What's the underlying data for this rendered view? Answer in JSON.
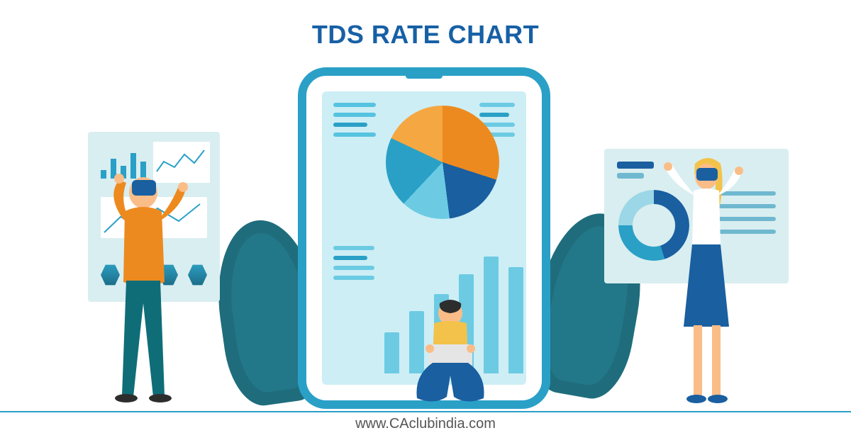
{
  "title": {
    "text": "TDS RATE CHART",
    "color": "#1760a5",
    "fontsize": 36
  },
  "footer": {
    "text": "www.CAclubindia.com",
    "color": "#555555",
    "fontsize": 20
  },
  "colors": {
    "background": "#ffffff",
    "tablet_border": "#2aa0c7",
    "screen_bg": "#cdeef5",
    "panel_bg": "#d9eef0",
    "leaf": "#1f6d7c",
    "dash": "#9fd2dc",
    "orange": "#ed8a1f",
    "blue_dark": "#1a5fa0",
    "teal": "#2aa0c7",
    "teal_light": "#6ccbe3",
    "skin": "#fbbd88",
    "hair_dark": "#2d2d2d",
    "hair_blonde": "#f3c24a",
    "pants_teal": "#0f6d78",
    "laptop": "#e5e5e5"
  },
  "tablet_pie": {
    "type": "pie",
    "slices": [
      {
        "value": 30,
        "color": "#ed8a1f"
      },
      {
        "value": 18,
        "color": "#1a5fa0"
      },
      {
        "value": 14,
        "color": "#6ccbe3"
      },
      {
        "value": 20,
        "color": "#2aa0c7"
      },
      {
        "value": 18,
        "color": "#f5a742"
      }
    ],
    "background": "#cdeef5"
  },
  "tablet_bars": {
    "type": "bar",
    "values": [
      58,
      88,
      112,
      140,
      165,
      150
    ],
    "colors": [
      "#6ccbe3",
      "#6ccbe3",
      "#6ccbe3",
      "#6ccbe3",
      "#6ccbe3",
      "#6ccbe3"
    ],
    "max": 180
  },
  "panel_left": {
    "mini_bars": {
      "values": [
        12,
        28,
        18,
        36,
        24
      ],
      "color": "#2aa0c7"
    },
    "mini_line": {
      "points": [
        5,
        42,
        15,
        28,
        30,
        36,
        44,
        18,
        58,
        30,
        72,
        12
      ],
      "stroke": "#2aa0c7"
    },
    "big_line": {
      "points": [
        5,
        50,
        28,
        28,
        52,
        40,
        80,
        16,
        110,
        34,
        140,
        10
      ],
      "stroke": "#2aa0c7"
    },
    "hex_color": "#2e9ec1"
  },
  "panel_right": {
    "donut": {
      "type": "donut",
      "slices": [
        {
          "value": 45,
          "color": "#1a5fa0"
        },
        {
          "value": 30,
          "color": "#2aa0c7"
        },
        {
          "value": 25,
          "color": "#9bd7e6"
        }
      ],
      "hole_color": "#d9eef0"
    },
    "legend_items": 4
  },
  "people": {
    "p1": {
      "shirt": "#ed8a1f",
      "pants": "#0f6d78",
      "hair": "#2d2d2d",
      "skin": "#fbbd88",
      "headset": "#1a5fa0"
    },
    "p2": {
      "shirt": "#f3c24a",
      "pants": "#1a5fa0",
      "hair": "#2d2d2d",
      "skin": "#fbbd88",
      "laptop": "#e5e5e5"
    },
    "p3": {
      "shirt": "#ffffff",
      "skirt": "#1a5fa0",
      "hair": "#f3c24a",
      "skin": "#fbbd88",
      "headset": "#1a5fa0"
    }
  }
}
